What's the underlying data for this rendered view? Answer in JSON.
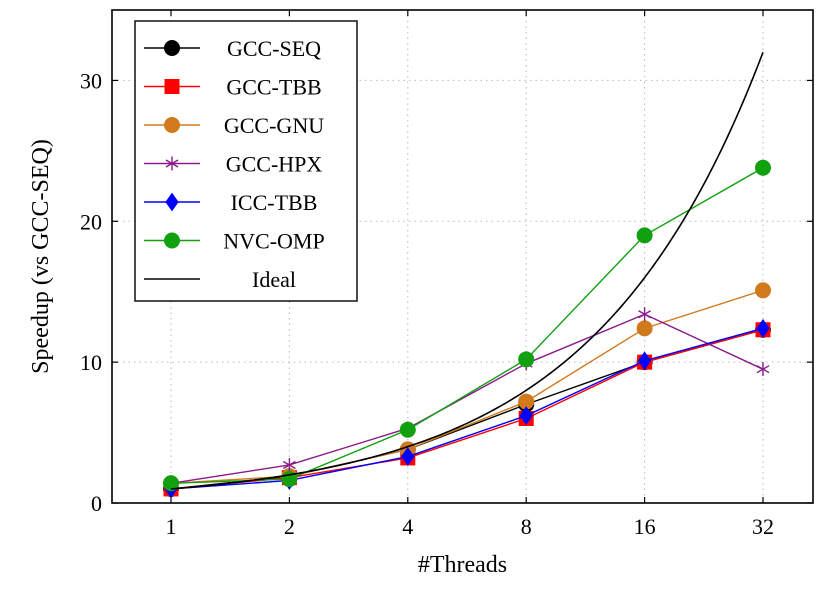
{
  "chart_data": {
    "type": "line",
    "xlabel": "#Threads",
    "ylabel": "Speedup (vs GCC-SEQ)",
    "x": [
      1,
      2,
      4,
      8,
      16,
      32
    ],
    "x_tick_labels": [
      "1",
      "2",
      "4",
      "8",
      "16",
      "32"
    ],
    "x_scale": "log2",
    "ylim": [
      0,
      35
    ],
    "y_ticks": [
      0,
      10,
      20,
      30
    ],
    "y_tick_labels": [
      "0",
      "10",
      "20",
      "30"
    ],
    "grid": "dotted",
    "legend_position": "top-left",
    "series": [
      {
        "name": "GCC-SEQ",
        "color": "#000000",
        "marker": "circle",
        "values": [
          1.0,
          1.9,
          3.8,
          7.0,
          10.0,
          12.3
        ]
      },
      {
        "name": "GCC-TBB",
        "color": "#ff0000",
        "marker": "square",
        "values": [
          1.0,
          1.8,
          3.2,
          6.0,
          10.0,
          12.3
        ]
      },
      {
        "name": "GCC-GNU",
        "color": "#d07a1c",
        "marker": "circle",
        "values": [
          1.4,
          1.9,
          3.8,
          7.2,
          12.4,
          15.1
        ]
      },
      {
        "name": "GCC-HPX",
        "color": "#8b1a8b",
        "marker": "star",
        "values": [
          1.4,
          2.7,
          5.3,
          9.9,
          13.4,
          9.5
        ]
      },
      {
        "name": "ICC-TBB",
        "color": "#0000ff",
        "marker": "diamond",
        "values": [
          1.0,
          1.6,
          3.3,
          6.2,
          10.1,
          12.4
        ]
      },
      {
        "name": "NVC-OMP",
        "color": "#10a010",
        "marker": "circle",
        "values": [
          1.4,
          1.7,
          5.2,
          10.2,
          19.0,
          23.8
        ]
      },
      {
        "name": "Ideal",
        "color": "#000000",
        "marker": "none",
        "values": [
          1,
          2,
          4,
          8,
          16,
          32
        ],
        "smooth": true
      }
    ]
  }
}
